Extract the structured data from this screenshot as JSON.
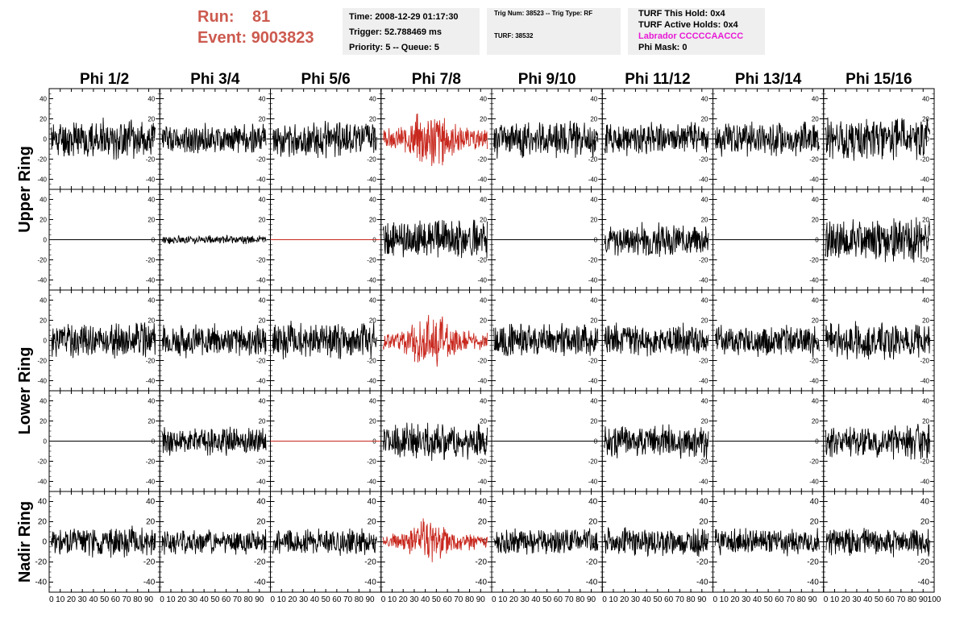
{
  "header": {
    "run_label": "Run:",
    "run_value": "81",
    "event_label": "Event:",
    "event_value": "9003823",
    "time": "Time: 2008-12-29 01:17:30",
    "trigger": "Trigger: 52.788469 ms",
    "priority": "Priority: 5 -- Queue: 5",
    "trig_num": "Trig Num: 38523 -- Trig Type: RF",
    "turf": "TURF: 38532",
    "turf_this_hold": "TURF This Hold: 0x4",
    "turf_active_holds": "TURF Active Holds: 0x4",
    "labrador": "Labrador CCCCCAACCC",
    "phi_mask": "Phi Mask: 0"
  },
  "colors": {
    "title_red": "#cc5a4f",
    "trace_black": "#000000",
    "trace_red": "#c8281e",
    "labrador_magenta": "#e81ad6"
  },
  "chart_data": {
    "type": "line",
    "columns": [
      "Phi 1/2",
      "Phi 3/4",
      "Phi 5/6",
      "Phi 7/8",
      "Phi 9/10",
      "Phi 11/12",
      "Phi 13/14",
      "Phi 15/16"
    ],
    "ring_labels": [
      "Upper Ring",
      "Lower Ring",
      "Nadir Ring"
    ],
    "ylim": [
      -50,
      50
    ],
    "yticks": [
      -40,
      -20,
      0,
      20,
      40
    ],
    "xlim": [
      0,
      100
    ],
    "x_tick_labels": [
      "0",
      "10",
      "20",
      "30",
      "40",
      "50",
      "60",
      "70",
      "80",
      "90",
      "100"
    ],
    "rows": [
      {
        "traces": [
          {
            "kind": "noise",
            "amp": 18,
            "color": "black",
            "seed": 11
          },
          {
            "kind": "noise",
            "amp": 14,
            "color": "black",
            "seed": 12
          },
          {
            "kind": "noise",
            "amp": 16,
            "color": "black",
            "seed": 13
          },
          {
            "kind": "pulse",
            "amp": 26,
            "color": "red",
            "seed": 14
          },
          {
            "kind": "noise",
            "amp": 17,
            "color": "black",
            "seed": 15
          },
          {
            "kind": "noise",
            "amp": 15,
            "color": "black",
            "seed": 16
          },
          {
            "kind": "noise",
            "amp": 16,
            "color": "black",
            "seed": 17
          },
          {
            "kind": "noise",
            "amp": 20,
            "color": "black",
            "seed": 18
          }
        ]
      },
      {
        "traces": [
          {
            "kind": "flat",
            "amp": 0,
            "color": "black",
            "seed": 21
          },
          {
            "kind": "noise",
            "amp": 4,
            "color": "black",
            "seed": 22
          },
          {
            "kind": "flat",
            "amp": 0,
            "color": "red",
            "seed": 23
          },
          {
            "kind": "noise",
            "amp": 18,
            "color": "black",
            "seed": 24
          },
          {
            "kind": "flat",
            "amp": 0,
            "color": "black",
            "seed": 25
          },
          {
            "kind": "noise",
            "amp": 15,
            "color": "black",
            "seed": 26
          },
          {
            "kind": "flat",
            "amp": 0,
            "color": "black",
            "seed": 27
          },
          {
            "kind": "noise",
            "amp": 20,
            "color": "black",
            "seed": 28
          }
        ]
      },
      {
        "traces": [
          {
            "kind": "noise",
            "amp": 16,
            "color": "black",
            "seed": 31
          },
          {
            "kind": "noise",
            "amp": 15,
            "color": "black",
            "seed": 32
          },
          {
            "kind": "noise",
            "amp": 17,
            "color": "black",
            "seed": 33
          },
          {
            "kind": "pulse",
            "amp": 24,
            "color": "red",
            "seed": 34
          },
          {
            "kind": "noise",
            "amp": 16,
            "color": "black",
            "seed": 35
          },
          {
            "kind": "noise",
            "amp": 15,
            "color": "black",
            "seed": 36
          },
          {
            "kind": "noise",
            "amp": 15,
            "color": "black",
            "seed": 37
          },
          {
            "kind": "noise",
            "amp": 17,
            "color": "black",
            "seed": 38
          }
        ]
      },
      {
        "traces": [
          {
            "kind": "flat",
            "amp": 0,
            "color": "black",
            "seed": 41
          },
          {
            "kind": "noise",
            "amp": 13,
            "color": "black",
            "seed": 42
          },
          {
            "kind": "flat",
            "amp": 0,
            "color": "red",
            "seed": 43
          },
          {
            "kind": "noise",
            "amp": 17,
            "color": "black",
            "seed": 44
          },
          {
            "kind": "flat",
            "amp": 0,
            "color": "black",
            "seed": 45
          },
          {
            "kind": "noise",
            "amp": 15,
            "color": "black",
            "seed": 46
          },
          {
            "kind": "flat",
            "amp": 0,
            "color": "black",
            "seed": 47
          },
          {
            "kind": "noise",
            "amp": 16,
            "color": "black",
            "seed": 48
          }
        ]
      },
      {
        "traces": [
          {
            "kind": "noise",
            "amp": 14,
            "color": "black",
            "seed": 51
          },
          {
            "kind": "noise",
            "amp": 12,
            "color": "black",
            "seed": 52
          },
          {
            "kind": "noise",
            "amp": 12,
            "color": "black",
            "seed": 53
          },
          {
            "kind": "pulse",
            "amp": 20,
            "color": "red",
            "seed": 54
          },
          {
            "kind": "noise",
            "amp": 12,
            "color": "black",
            "seed": 55
          },
          {
            "kind": "noise",
            "amp": 13,
            "color": "black",
            "seed": 56
          },
          {
            "kind": "noise",
            "amp": 12,
            "color": "black",
            "seed": 57
          },
          {
            "kind": "noise",
            "amp": 13,
            "color": "black",
            "seed": 58
          }
        ]
      }
    ]
  }
}
